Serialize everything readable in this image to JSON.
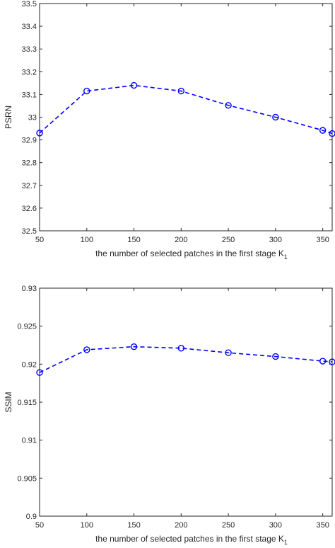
{
  "chart_data": [
    {
      "type": "line",
      "xlabel": "the number of selected patches in the first stage K",
      "xlabel_subscript": "1",
      "ylabel": "PSRN",
      "xlim": [
        50,
        360
      ],
      "ylim": [
        32.5,
        33.5
      ],
      "xticks": [
        "50",
        "100",
        "150",
        "200",
        "250",
        "300",
        "350"
      ],
      "yticks": [
        "32.5",
        "32.6",
        "32.7",
        "32.8",
        "32.9",
        "33",
        "33.1",
        "33.2",
        "33.3",
        "33.4",
        "33.5"
      ],
      "grid": false,
      "color": "#0000ff",
      "line_style": "dashed",
      "marker": "circle",
      "series": [
        {
          "x": [
            50,
            100,
            150,
            200,
            250,
            300,
            350,
            360
          ],
          "y": [
            32.93,
            33.115,
            33.14,
            33.115,
            33.052,
            33.0,
            32.942,
            32.928
          ]
        }
      ]
    },
    {
      "type": "line",
      "xlabel": "the number of selected patches in the first stage K",
      "xlabel_subscript": "1",
      "ylabel": "SSIM",
      "xlim": [
        50,
        360
      ],
      "ylim": [
        0.9,
        0.93
      ],
      "xticks": [
        "50",
        "100",
        "150",
        "200",
        "250",
        "300",
        "350"
      ],
      "yticks": [
        "0.9",
        "0.905",
        "0.91",
        "0.915",
        "0.92",
        "0.925",
        "0.93"
      ],
      "grid": false,
      "color": "#0000ff",
      "line_style": "dashed",
      "marker": "circle",
      "series": [
        {
          "x": [
            50,
            100,
            150,
            200,
            250,
            300,
            350,
            360
          ],
          "y": [
            0.9189,
            0.9219,
            0.9223,
            0.9221,
            0.9215,
            0.921,
            0.9204,
            0.9203
          ]
        }
      ]
    }
  ]
}
